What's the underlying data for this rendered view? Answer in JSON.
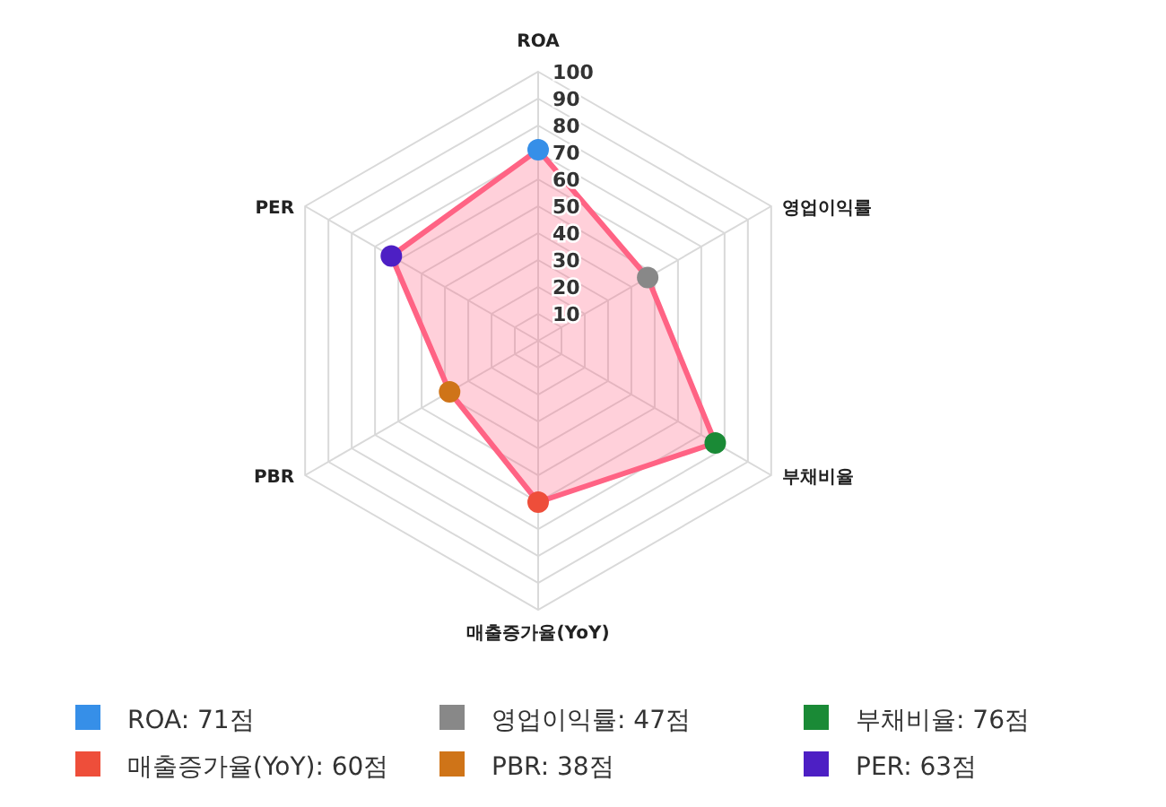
{
  "chart_data": {
    "type": "radar",
    "categories": [
      "ROA",
      "영업이익률",
      "부채비율",
      "매출증가율(YoY)",
      "PBR",
      "PER"
    ],
    "series": [
      {
        "color": "#ff6384",
        "values": [
          71,
          47,
          76,
          60,
          38,
          63
        ],
        "colors": [
          "#368fe8",
          "#888888",
          "#1a8a36",
          "#ee4e3a",
          "#cf7418",
          "#4d1fc4"
        ]
      }
    ],
    "annotations": [
      "ROA: 71점",
      "영업이익률: 47점",
      "부채비율: 76점",
      "매출증가율(YoY): 60점",
      "PBR: 38점",
      "PER: 63점"
    ],
    "ylim": [
      0,
      100
    ],
    "yticks": [
      10,
      20,
      30,
      40,
      50,
      60,
      70,
      80,
      90,
      100
    ],
    "grid": true,
    "marker": "circle"
  }
}
